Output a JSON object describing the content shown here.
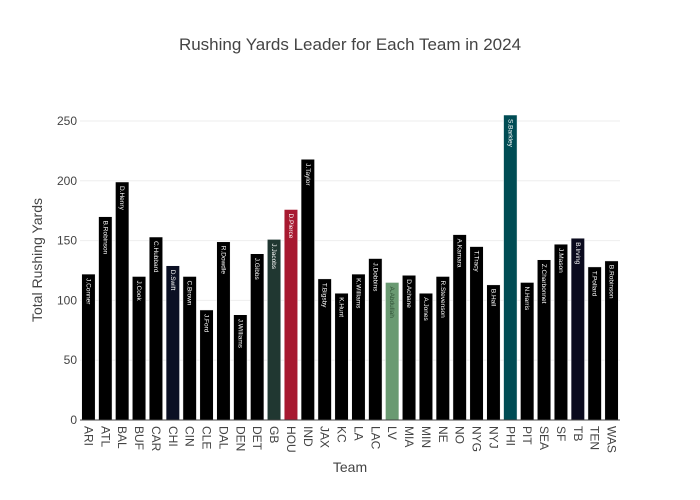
{
  "chart_data": {
    "type": "bar",
    "title": "Rushing Yards Leader for Each Team in 2024",
    "xlabel": "Team",
    "ylabel": "Total Rushing Yards",
    "ylim": [
      0,
      255
    ],
    "yticks": [
      0,
      50,
      100,
      150,
      200,
      250
    ],
    "grid": true,
    "legend": "none",
    "categories": [
      "ARI",
      "ATL",
      "BAL",
      "BUF",
      "CAR",
      "CHI",
      "CIN",
      "CLE",
      "DAL",
      "DEN",
      "DET",
      "GB",
      "HOU",
      "IND",
      "JAX",
      "KC",
      "LA",
      "LAC",
      "LV",
      "MIA",
      "MIN",
      "NE",
      "NO",
      "NYG",
      "NYJ",
      "PHI",
      "PIT",
      "SEA",
      "SF",
      "TB",
      "TEN",
      "WAS"
    ],
    "players": [
      "J.Conner",
      "B.Robinson",
      "D.Henry",
      "J.Cook",
      "C.Hubbard",
      "D.Swift",
      "C.Brown",
      "J.Ford",
      "R.Dowdle",
      "J.Williams",
      "J.Gibbs",
      "J.Jacobs",
      "D.Pierce",
      "J.Taylor",
      "T.Bigsby",
      "K.Hunt",
      "K.Williams",
      "J.Dobbins",
      "A.Abdullah",
      "D.Achane",
      "A.Jones",
      "R.Stevenson",
      "A.Kamara",
      "T.Tracy",
      "B.Hall",
      "S.Barkley",
      "N.Harris",
      "Z.Charbonnet",
      "J.Mason",
      "B.Irving",
      "T.Pollard",
      "B.Robinson"
    ],
    "values": [
      122,
      170,
      199,
      120,
      153,
      129,
      120,
      92,
      149,
      88,
      139,
      151,
      176,
      218,
      118,
      106,
      122,
      135,
      115,
      121,
      106,
      120,
      155,
      145,
      113,
      255,
      115,
      134,
      147,
      152,
      128,
      133
    ],
    "colors": [
      "#000000",
      "#000000",
      "#000000",
      "#000000",
      "#000000",
      "#0b1024",
      "#000000",
      "#000000",
      "#000000",
      "#000000",
      "#000000",
      "#203731",
      "#a71930",
      "#000000",
      "#000000",
      "#000000",
      "#000000",
      "#000000",
      "#6a9a72",
      "#000000",
      "#000000",
      "#000000",
      "#000000",
      "#000000",
      "#000000",
      "#004c54",
      "#000000",
      "#000000",
      "#000000",
      "#0b0b1e",
      "#000000",
      "#000000"
    ],
    "label_colors": [
      "#ffffff",
      "#ffffff",
      "#ffffff",
      "#ffffff",
      "#ffffff",
      "#ffffff",
      "#ffffff",
      "#ffffff",
      "#ffffff",
      "#ffffff",
      "#ffffff",
      "#ffffff",
      "#ffffff",
      "#ffffff",
      "#ffffff",
      "#ffffff",
      "#ffffff",
      "#ffffff",
      "#2f4f35",
      "#ffffff",
      "#ffffff",
      "#ffffff",
      "#ffffff",
      "#ffffff",
      "#ffffff",
      "#ffffff",
      "#ffffff",
      "#ffffff",
      "#ffffff",
      "#ffffff",
      "#ffffff",
      "#ffffff"
    ]
  }
}
